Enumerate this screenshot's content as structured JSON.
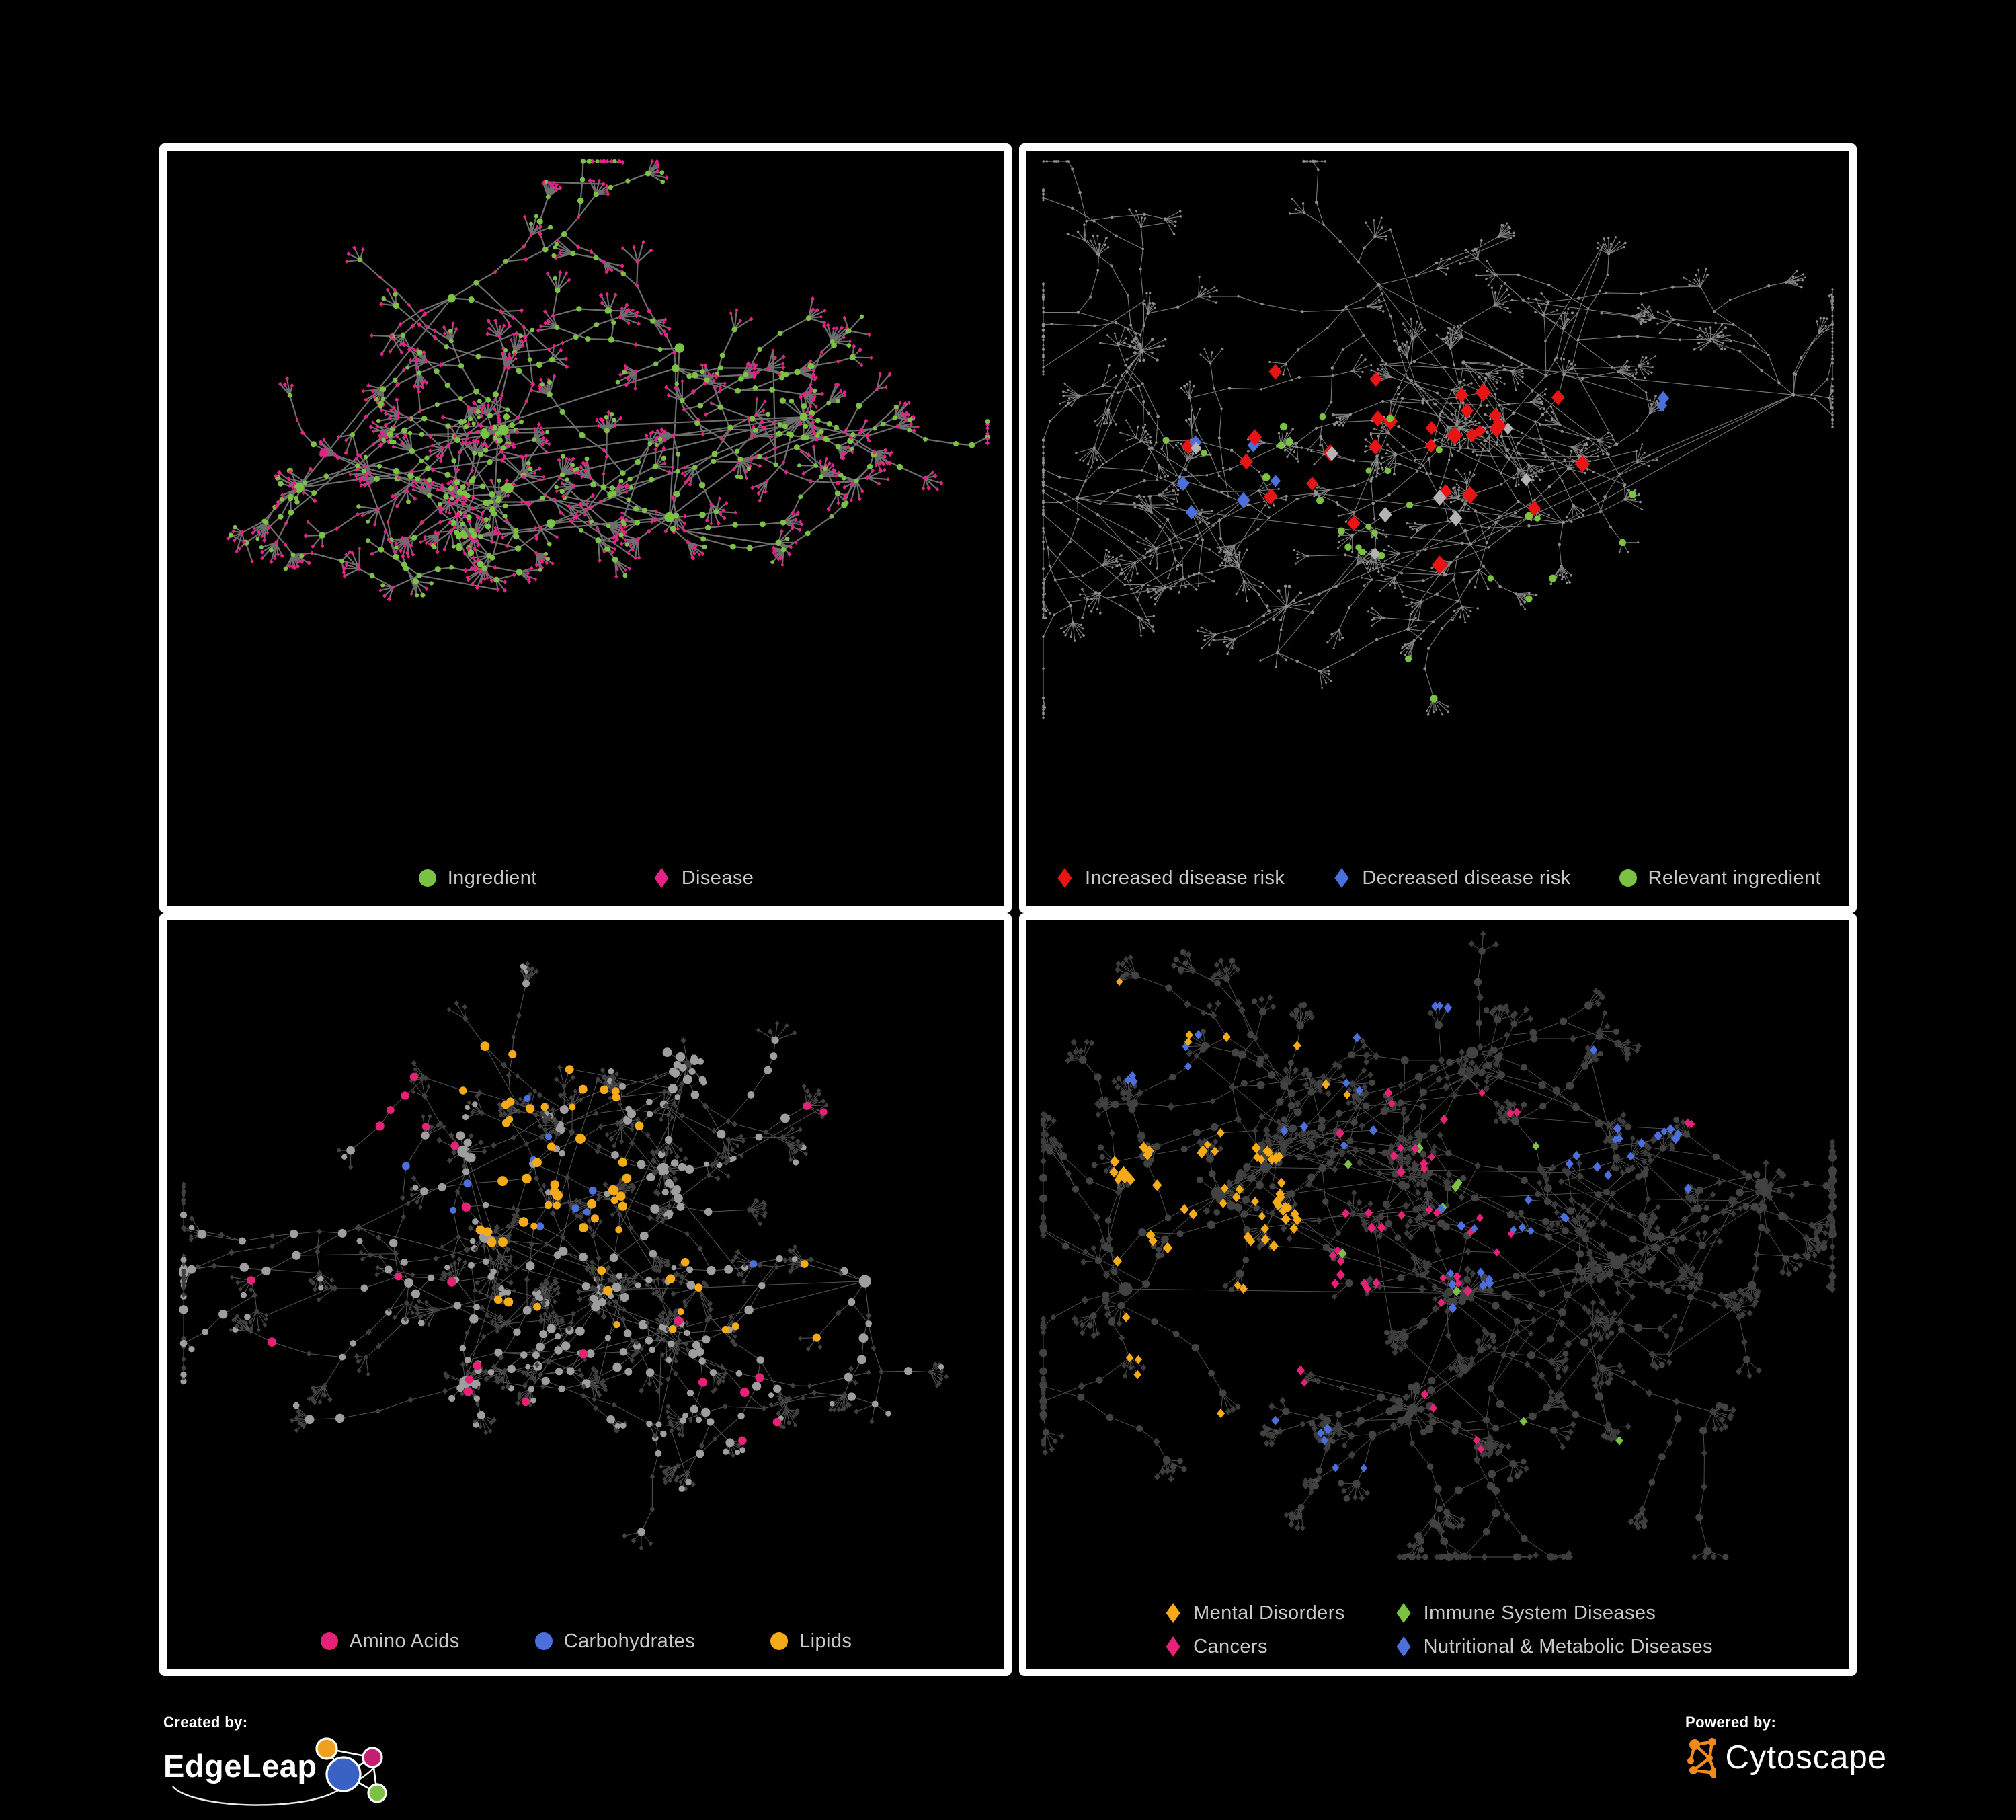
{
  "page": {
    "background": "#000000",
    "panel_border": "#ffffff"
  },
  "palette": {
    "green": "#7cc242",
    "pink": "#e62187",
    "red": "#e91515",
    "blue": "#4b6fdc",
    "orange": "#f5ab18",
    "cancers_pink": "#e62277",
    "silver": "#b3b3b3",
    "gray_node": "#9e9e9e",
    "dark_node": "#3f3f3f",
    "legend_text": "#c9c9c9"
  },
  "panels": [
    {
      "name": "ingredient-disease-network",
      "legend_layout": "row",
      "legend_gap": 170,
      "legend": [
        {
          "label": "Ingredient",
          "shape": "circle",
          "color": "#7cc242"
        },
        {
          "label": "Disease",
          "shape": "diamond",
          "color": "#e62187"
        }
      ],
      "net": {
        "seed": 101,
        "spread": 0.78,
        "extraEdges": 0.08,
        "blobProb": 0.6,
        "edge": {
          "color": "#6e6e6e",
          "width": 2.2,
          "opacity": 1
        },
        "base": {
          "ing": {
            "shape": "circle",
            "color": "#7cc242",
            "r": {
              "hub": [
                5.5,
                9
              ],
              "mid": [
                3.4,
                4.8
              ],
              "leaf": [
                2.9,
                3.7
              ]
            }
          },
          "dis": {
            "shape": "diamond",
            "color": "#e62187",
            "r": {
              "hub": [
                7,
                10
              ],
              "mid": [
                3.3,
                4.3
              ],
              "leaf": [
                2.9,
                3.8
              ]
            }
          }
        },
        "highlights": []
      }
    },
    {
      "name": "disease-risk-network",
      "legend_layout": "row",
      "legend_gap": 70,
      "legend": [
        {
          "label": "Increased disease risk",
          "shape": "diamond",
          "color": "#e91515"
        },
        {
          "label": "Decreased disease risk",
          "shape": "diamond",
          "color": "#4b6fdc"
        },
        {
          "label": "Relevant ingredient",
          "shape": "circle",
          "color": "#7cc242"
        }
      ],
      "net": {
        "seed": 202,
        "spread": 1.0,
        "extraEdges": 0.12,
        "blobProb": 0.35,
        "edge": {
          "color": "#9a9a9a",
          "width": 1.1,
          "opacity": 0.8
        },
        "base": {
          "ing": {
            "shape": "circle",
            "color": "#8f8f8f",
            "r": {
              "hub": [
                2.4,
                3.2
              ],
              "mid": [
                1.7,
                2.4
              ],
              "leaf": [
                1.4,
                1.9
              ]
            }
          },
          "dis": {
            "shape": "circle",
            "color": "#8f8f8f",
            "r": {
              "hub": [
                2.4,
                3.2
              ],
              "mid": [
                1.7,
                2.4
              ],
              "leaf": [
                1.4,
                1.9
              ]
            }
          }
        },
        "highlights": [
          {
            "role": "any",
            "region": [
              0.33,
              0.33,
              0.56,
              0.62
            ],
            "count": 18,
            "shape": "diamond",
            "color": "#e91515",
            "r": [
              10,
              14
            ]
          },
          {
            "role": "any",
            "region": [
              0.16,
              0.36,
              0.3,
              0.52
            ],
            "count": 5,
            "shape": "diamond",
            "color": "#e91515",
            "r": [
              10,
              13
            ]
          },
          {
            "role": "any",
            "region": [
              0.56,
              0.36,
              0.68,
              0.62
            ],
            "count": 6,
            "shape": "diamond",
            "color": "#e91515",
            "r": [
              10,
              13
            ]
          },
          {
            "role": "any",
            "region": [
              0.6,
              0.68,
              0.78,
              0.82
            ],
            "count": 3,
            "shape": "diamond",
            "color": "#e91515",
            "r": [
              10,
              12
            ]
          },
          {
            "role": "any",
            "region": [
              0.28,
              0.28,
              0.36,
              0.36
            ],
            "count": 1,
            "shape": "diamond",
            "color": "#e91515",
            "r": [
              11,
              12
            ]
          },
          {
            "role": "any",
            "region": [
              0.19,
              0.4,
              0.31,
              0.56
            ],
            "count": 6,
            "shape": "diamond",
            "color": "#4b6fdc",
            "r": [
              9,
              13
            ]
          },
          {
            "role": "any",
            "region": [
              0.76,
              0.3,
              0.88,
              0.4
            ],
            "count": 2,
            "shape": "diamond",
            "color": "#4b6fdc",
            "r": [
              9,
              11
            ]
          },
          {
            "role": "any",
            "region": [
              0.2,
              0.36,
              0.62,
              0.62
            ],
            "count": 8,
            "shape": "diamond",
            "color": "#b3b3b3",
            "r": [
              9,
              12
            ]
          },
          {
            "role": "any",
            "region": [
              0.35,
              0.36,
              0.52,
              0.62
            ],
            "count": 14,
            "shape": "circle",
            "color": "#7cc242",
            "r": [
              4.5,
              6
            ]
          },
          {
            "role": "any",
            "region": [
              0.16,
              0.32,
              0.33,
              0.52
            ],
            "count": 6,
            "shape": "circle",
            "color": "#7cc242",
            "r": [
              4.5,
              6
            ]
          },
          {
            "role": "any",
            "region": [
              0.55,
              0.5,
              0.76,
              0.78
            ],
            "count": 7,
            "shape": "circle",
            "color": "#7cc242",
            "r": [
              4.5,
              6
            ]
          },
          {
            "role": "any",
            "region": [
              0.44,
              0.74,
              0.56,
              0.84
            ],
            "count": 2,
            "shape": "circle",
            "color": "#7cc242",
            "r": [
              4.5,
              6
            ]
          }
        ]
      }
    },
    {
      "name": "macronutrient-network",
      "legend_layout": "row",
      "legend_gap": 110,
      "legend": [
        {
          "label": "Amino Acids",
          "shape": "circle",
          "color": "#e62277"
        },
        {
          "label": "Carbohydrates",
          "shape": "circle",
          "color": "#4b6fdc"
        },
        {
          "label": "Lipids",
          "shape": "circle",
          "color": "#f5ab18"
        }
      ],
      "net": {
        "seed": 303,
        "spread": 0.95,
        "extraEdges": 0.18,
        "blobProb": 0.6,
        "edge": {
          "color": "#909090",
          "width": 1.0,
          "opacity": 0.6
        },
        "base": {
          "ing": {
            "shape": "circle",
            "color": "#9e9e9e",
            "r": {
              "hub": [
                7.5,
                10.5
              ],
              "mid": [
                4.6,
                7
              ],
              "leaf": [
                3.8,
                4.8
              ]
            }
          },
          "dis": {
            "shape": "diamond",
            "color": "#404040",
            "r": {
              "hub": [
                6,
                8
              ],
              "mid": [
                4.2,
                5.2
              ],
              "leaf": [
                3.6,
                4.6
              ]
            }
          }
        },
        "highlights": [
          {
            "role": "ing",
            "region": [
              0.38,
              0.3,
              0.58,
              0.48
            ],
            "count": 26,
            "shape": "circle",
            "color": "#f5ab18",
            "r": [
              5.5,
              7.5
            ]
          },
          {
            "role": "ing",
            "region": [
              0.3,
              0.1,
              0.55,
              0.3
            ],
            "count": 14,
            "shape": "circle",
            "color": "#f5ab18",
            "r": [
              5,
              7
            ]
          },
          {
            "role": "ing",
            "region": [
              0.35,
              0.45,
              0.62,
              0.62
            ],
            "count": 12,
            "shape": "circle",
            "color": "#f5ab18",
            "r": [
              5,
              7
            ]
          },
          {
            "role": "ing",
            "region": [
              0.6,
              0.45,
              0.85,
              0.62
            ],
            "count": 6,
            "shape": "circle",
            "color": "#f5ab18",
            "r": [
              5,
              7
            ]
          },
          {
            "role": "ing",
            "region": [
              0.05,
              0.1,
              0.35,
              0.35
            ],
            "count": 6,
            "shape": "circle",
            "color": "#e62277",
            "r": [
              5.5,
              7
            ]
          },
          {
            "role": "ing",
            "region": [
              0.08,
              0.35,
              0.4,
              0.65
            ],
            "count": 5,
            "shape": "circle",
            "color": "#e62277",
            "r": [
              5.5,
              7
            ]
          },
          {
            "role": "ing",
            "region": [
              0.25,
              0.62,
              0.5,
              0.85
            ],
            "count": 5,
            "shape": "circle",
            "color": "#e62277",
            "r": [
              5.5,
              7
            ]
          },
          {
            "role": "ing",
            "region": [
              0.6,
              0.55,
              0.8,
              0.78
            ],
            "count": 6,
            "shape": "circle",
            "color": "#e62277",
            "r": [
              5.5,
              7
            ]
          },
          {
            "role": "ing",
            "region": [
              0.75,
              0.2,
              0.98,
              0.32
            ],
            "count": 3,
            "shape": "circle",
            "color": "#e62277",
            "r": [
              5.5,
              7
            ]
          },
          {
            "role": "ing",
            "region": [
              0.55,
              0.02,
              0.75,
              0.1
            ],
            "count": 1,
            "shape": "circle",
            "color": "#e62277",
            "r": [
              5.5,
              7
            ]
          },
          {
            "role": "ing",
            "region": [
              0.4,
              0.32,
              0.56,
              0.46
            ],
            "count": 6,
            "shape": "circle",
            "color": "#4b6fdc",
            "r": [
              4.8,
              6
            ]
          },
          {
            "role": "ing",
            "region": [
              0.02,
              0.05,
              0.45,
              0.45
            ],
            "count": 4,
            "shape": "circle",
            "color": "#4b6fdc",
            "r": [
              4.8,
              6
            ]
          },
          {
            "role": "ing",
            "region": [
              0.6,
              0.5,
              0.75,
              0.62
            ],
            "count": 1,
            "shape": "circle",
            "color": "#4b6fdc",
            "r": [
              4.8,
              6
            ]
          }
        ]
      }
    },
    {
      "name": "disease-category-network",
      "legend_layout": "grid2",
      "legend_gap": 72,
      "legend": [
        {
          "label": "Mental Disorders",
          "shape": "diamond",
          "color": "#f5ab18"
        },
        {
          "label": "Immune System Diseases",
          "shape": "diamond",
          "color": "#7cc242"
        },
        {
          "label": "Cancers",
          "shape": "diamond",
          "color": "#e62277"
        },
        {
          "label": "Nutritional & Metabolic Diseases",
          "shape": "diamond",
          "color": "#4b6fdc"
        }
      ],
      "net": {
        "seed": 404,
        "spread": 1.0,
        "extraEdges": 0.3,
        "blobProb": 0.6,
        "edge": {
          "color": "#9a9a9a",
          "width": 0.9,
          "opacity": 0.55
        },
        "base": {
          "ing": {
            "shape": "circle",
            "color": "#424242",
            "r": {
              "hub": [
                7.5,
                10.5
              ],
              "mid": [
                4.8,
                6.2
              ],
              "leaf": [
                4,
                4.8
              ]
            }
          },
          "dis": {
            "shape": "diamond",
            "color": "#3c3c3c",
            "r": {
              "hub": [
                7,
                8.5
              ],
              "mid": [
                5.2,
                6.6
              ],
              "leaf": [
                4.6,
                5.6
              ]
            }
          }
        },
        "highlights": [
          {
            "role": "dis",
            "region": [
              0.1,
              0.35,
              0.33,
              0.6
            ],
            "count": 55,
            "shape": "diamond",
            "color": "#f5ab18",
            "r": [
              6.5,
              8.5
            ]
          },
          {
            "role": "dis",
            "region": [
              0.08,
              0.08,
              0.45,
              0.35
            ],
            "count": 9,
            "shape": "diamond",
            "color": "#f5ab18",
            "r": [
              6,
              7.5
            ]
          },
          {
            "role": "dis",
            "region": [
              0.12,
              0.6,
              0.3,
              0.78
            ],
            "count": 5,
            "shape": "diamond",
            "color": "#f5ab18",
            "r": [
              6,
              7.5
            ]
          },
          {
            "role": "dis",
            "region": [
              0.36,
              0.26,
              0.6,
              0.62
            ],
            "count": 38,
            "shape": "diamond",
            "color": "#e62277",
            "r": [
              6,
              8
            ]
          },
          {
            "role": "dis",
            "region": [
              0.8,
              0.22,
              0.94,
              0.32
            ],
            "count": 5,
            "shape": "diamond",
            "color": "#e62277",
            "r": [
              6,
              7.5
            ]
          },
          {
            "role": "dis",
            "region": [
              0.42,
              0.72,
              0.56,
              0.86
            ],
            "count": 4,
            "shape": "diamond",
            "color": "#e62277",
            "r": [
              6,
              7.5
            ]
          },
          {
            "role": "dis",
            "region": [
              0.25,
              0.6,
              0.34,
              0.72
            ],
            "count": 3,
            "shape": "diamond",
            "color": "#e62277",
            "r": [
              6,
              7.5
            ]
          },
          {
            "role": "dis",
            "region": [
              0.42,
              0.04,
              0.54,
              0.14
            ],
            "count": 5,
            "shape": "diamond",
            "color": "#4b6fdc",
            "r": [
              6,
              8
            ]
          },
          {
            "role": "dis",
            "region": [
              0.1,
              0.1,
              0.26,
              0.25
            ],
            "count": 6,
            "shape": "diamond",
            "color": "#4b6fdc",
            "r": [
              6,
              7.5
            ]
          },
          {
            "role": "dis",
            "region": [
              0.3,
              0.16,
              0.45,
              0.38
            ],
            "count": 7,
            "shape": "diamond",
            "color": "#4b6fdc",
            "r": [
              6,
              7.5
            ]
          },
          {
            "role": "dis",
            "region": [
              0.5,
              0.42,
              0.66,
              0.6
            ],
            "count": 16,
            "shape": "diamond",
            "color": "#4b6fdc",
            "r": [
              6,
              8
            ]
          },
          {
            "role": "dis",
            "region": [
              0.62,
              0.14,
              0.95,
              0.42
            ],
            "count": 16,
            "shape": "diamond",
            "color": "#4b6fdc",
            "r": [
              6,
              8
            ]
          },
          {
            "role": "dis",
            "region": [
              0.28,
              0.6,
              0.45,
              0.85
            ],
            "count": 7,
            "shape": "diamond",
            "color": "#4b6fdc",
            "r": [
              6,
              7.5
            ]
          },
          {
            "role": "dis",
            "region": [
              0.3,
              0.25,
              0.62,
              0.58
            ],
            "count": 8,
            "shape": "diamond",
            "color": "#7cc242",
            "r": [
              6.5,
              8
            ]
          },
          {
            "role": "dis",
            "region": [
              0.45,
              0.7,
              0.78,
              0.82
            ],
            "count": 2,
            "shape": "diamond",
            "color": "#7cc242",
            "r": [
              6.5,
              8
            ]
          }
        ]
      }
    }
  ],
  "footer": {
    "created_by": "Created by:",
    "created_brand": "EdgeLeap",
    "powered_by": "Powered by:",
    "powered_brand": "Cytoscape",
    "edgeleap_colors": {
      "blue": "#3a62c4",
      "orange": "#f0a01e",
      "pink": "#c42071",
      "green": "#7cc242"
    },
    "cytoscape_orange": "#ef8b1d"
  }
}
